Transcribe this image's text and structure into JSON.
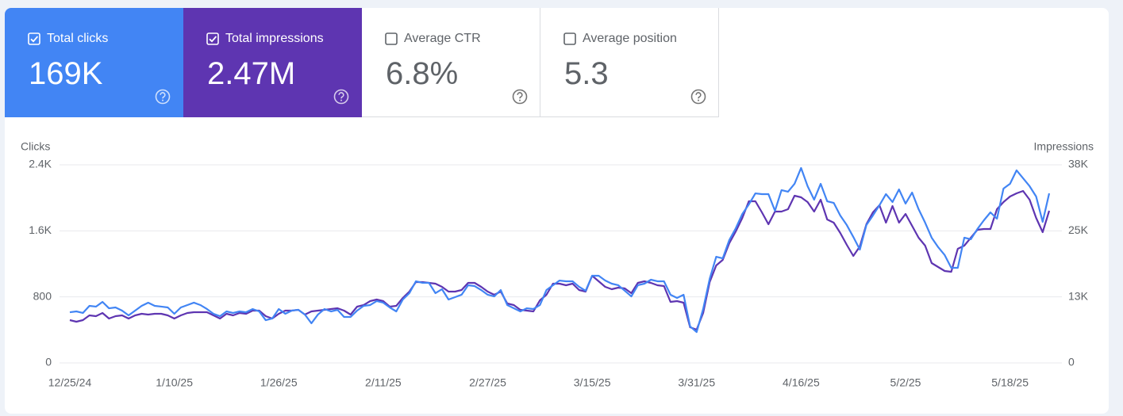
{
  "metrics": [
    {
      "label": "Total clicks",
      "value": "169K",
      "checked": true,
      "color": "#4285f4"
    },
    {
      "label": "Total impressions",
      "value": "2.47M",
      "checked": true,
      "color": "#5e35b1"
    },
    {
      "label": "Average CTR",
      "value": "6.8%",
      "checked": false
    },
    {
      "label": "Average position",
      "value": "5.3",
      "checked": false
    }
  ],
  "chart_data": {
    "type": "line",
    "categories": [
      "12/25/24",
      null,
      null,
      null,
      null,
      null,
      null,
      null,
      null,
      null,
      null,
      null,
      null,
      null,
      null,
      null,
      "1/10/25",
      null,
      null,
      null,
      null,
      null,
      null,
      null,
      null,
      null,
      null,
      null,
      null,
      null,
      null,
      null,
      "1/26/25",
      null,
      null,
      null,
      null,
      null,
      null,
      null,
      null,
      null,
      null,
      null,
      null,
      null,
      null,
      null,
      "2/11/25",
      null,
      null,
      null,
      null,
      null,
      null,
      null,
      null,
      null,
      null,
      null,
      null,
      null,
      null,
      null,
      "2/27/25",
      null,
      null,
      null,
      null,
      null,
      null,
      null,
      null,
      null,
      null,
      null,
      null,
      null,
      null,
      null,
      "3/15/25",
      null,
      null,
      null,
      null,
      null,
      null,
      null,
      null,
      null,
      null,
      null,
      null,
      null,
      null,
      null,
      "3/31/25",
      null,
      null,
      null,
      null,
      null,
      null,
      null,
      null,
      null,
      null,
      null,
      null,
      null,
      null,
      null,
      "4/16/25",
      null,
      null,
      null,
      null,
      null,
      null,
      null,
      null,
      null,
      null,
      null,
      null,
      null,
      null,
      null,
      "5/2/25",
      null,
      null,
      null,
      null,
      null,
      null,
      null,
      null,
      null,
      null,
      null,
      null,
      null,
      null,
      null,
      "5/18/25",
      null,
      null,
      null,
      null,
      null,
      null
    ],
    "ylim": [
      0,
      2400
    ],
    "yticks": [
      0,
      800,
      {
        "value": 1600,
        "label": "1.6K"
      },
      {
        "value": 2400,
        "label": "2.4K"
      }
    ],
    "y2lim": [
      0,
      37500
    ],
    "y2ticks": [
      0,
      {
        "value": 12500,
        "label": "13K"
      },
      {
        "value": 25000,
        "label": "25K"
      },
      {
        "value": 37500,
        "label": "38K"
      }
    ],
    "grid": true,
    "series": [
      {
        "name": "Clicks",
        "color": "#4285f4",
        "values": [
          614,
          624,
          605,
          691,
          682,
          739,
          662,
          672,
          634,
          576,
          634,
          691,
          730,
          691,
          682,
          672,
          595,
          672,
          701,
          730,
          701,
          653,
          595,
          566,
          624,
          605,
          624,
          614,
          653,
          624,
          518,
          538,
          653,
          595,
          634,
          643,
          586,
          480,
          586,
          653,
          624,
          643,
          557,
          557,
          634,
          691,
          701,
          749,
          730,
          672,
          624,
          768,
          845,
          989,
          970,
          970,
          845,
          893,
          768,
          797,
          826,
          941,
          931,
          883,
          826,
          806,
          883,
          701,
          662,
          624,
          662,
          653,
          701,
          883,
          941,
          998,
          989,
          989,
          922,
          874,
          1056,
          1056,
          998,
          960,
          941,
          874,
          806,
          941,
          960,
          1008,
          989,
          989,
          826,
          787,
          826,
          442,
          374,
          653,
          1018,
          1286,
          1267,
          1488,
          1632,
          1805,
          1920,
          2054,
          2045,
          2045,
          1843,
          2093,
          2074,
          2170,
          2362,
          2141,
          1978,
          2170,
          1958,
          1939,
          1786,
          1670,
          1526,
          1373,
          1670,
          1786,
          1910,
          2045,
          1949,
          2102,
          1930,
          2064,
          1862,
          1699,
          1517,
          1402,
          1306,
          1152,
          1152,
          1517,
          1498,
          1622,
          1728,
          1824,
          1747,
          2112,
          2170,
          2333,
          2237,
          2141,
          2016,
          1709,
          2054
        ]
      },
      {
        "name": "Impressions",
        "color": "#5e35b1",
        "axis": "y2",
        "values": [
          8100,
          7800,
          8100,
          9000,
          8850,
          9450,
          8400,
          8850,
          9000,
          8400,
          9000,
          9300,
          9150,
          9300,
          9300,
          9000,
          8400,
          9000,
          9450,
          9600,
          9600,
          9600,
          9000,
          8400,
          9300,
          9000,
          9450,
          9300,
          9900,
          9900,
          8850,
          8400,
          9300,
          9900,
          9900,
          10050,
          9150,
          9750,
          9900,
          10050,
          10200,
          10350,
          9900,
          9150,
          10650,
          10950,
          11700,
          12000,
          11700,
          10650,
          10800,
          12300,
          13500,
          15300,
          15300,
          15150,
          15000,
          14400,
          13500,
          13500,
          13800,
          15150,
          15150,
          14400,
          13500,
          12900,
          13500,
          11250,
          10950,
          10050,
          9900,
          9750,
          11850,
          12900,
          15000,
          15000,
          14700,
          15000,
          13800,
          13500,
          16500,
          15450,
          14400,
          13950,
          14250,
          14100,
          13200,
          15150,
          15450,
          15150,
          14700,
          14550,
          11550,
          11700,
          11400,
          6750,
          6300,
          9450,
          15300,
          18450,
          19500,
          22650,
          24900,
          27450,
          30600,
          30600,
          28500,
          26250,
          28650,
          28650,
          29100,
          31650,
          31350,
          30450,
          28650,
          30900,
          27150,
          26550,
          24600,
          22350,
          20250,
          22050,
          26250,
          28500,
          29850,
          26550,
          29700,
          26550,
          28200,
          25950,
          23700,
          22200,
          18900,
          18150,
          17400,
          17250,
          21600,
          22200,
          23700,
          25200,
          25350,
          25350,
          29100,
          30450,
          31500,
          32100,
          32550,
          30900,
          27450,
          24750,
          28800
        ]
      }
    ]
  }
}
